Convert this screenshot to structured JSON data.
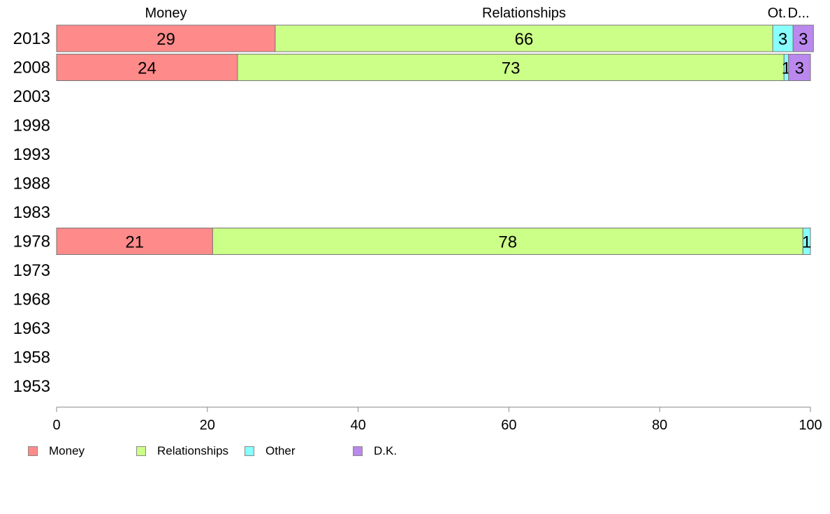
{
  "chart_data": {
    "type": "bar",
    "orientation": "horizontal",
    "stacked": true,
    "categories": [
      "2013",
      "2008",
      "2003",
      "1998",
      "1993",
      "1988",
      "1983",
      "1978",
      "1973",
      "1968",
      "1963",
      "1958",
      "1953"
    ],
    "series": [
      {
        "name": "Money",
        "color": "#ff8a8a",
        "values": [
          29,
          24,
          null,
          null,
          null,
          null,
          null,
          20.7,
          null,
          null,
          null,
          null,
          null
        ]
      },
      {
        "name": "Relationships",
        "color": "#ccff88",
        "values": [
          66,
          72.5,
          null,
          null,
          null,
          null,
          null,
          78.3,
          null,
          null,
          null,
          null,
          null
        ]
      },
      {
        "name": "Other",
        "color": "#88ffff",
        "values": [
          2.7,
          0.6,
          null,
          null,
          null,
          null,
          null,
          1,
          null,
          null,
          null,
          null,
          null
        ]
      },
      {
        "name": "D.K.",
        "color": "#bb88ee",
        "values": [
          2.7,
          2.9,
          null,
          null,
          null,
          null,
          null,
          0,
          null,
          null,
          null,
          null,
          null
        ]
      }
    ],
    "data_labels": [
      [
        "29",
        "66",
        "3",
        "3"
      ],
      [
        "24",
        "73",
        "1",
        "3"
      ],
      null,
      null,
      null,
      null,
      null,
      [
        "21",
        "78",
        "1",
        ""
      ],
      null,
      null,
      null,
      null,
      null
    ],
    "header_labels": [
      "Money",
      "Relationships",
      "Ot.",
      "D..."
    ],
    "xlim": [
      0,
      100
    ],
    "xticks": [
      0,
      20,
      40,
      60,
      80,
      100
    ],
    "grid": false,
    "legend_position": "bottom-left"
  },
  "legend": {
    "items": [
      {
        "label": "Money",
        "color": "#ff8a8a"
      },
      {
        "label": "Relationships",
        "color": "#ccff88"
      },
      {
        "label": "Other",
        "color": "#88ffff"
      },
      {
        "label": "D.K.",
        "color": "#bb88ee"
      }
    ]
  }
}
